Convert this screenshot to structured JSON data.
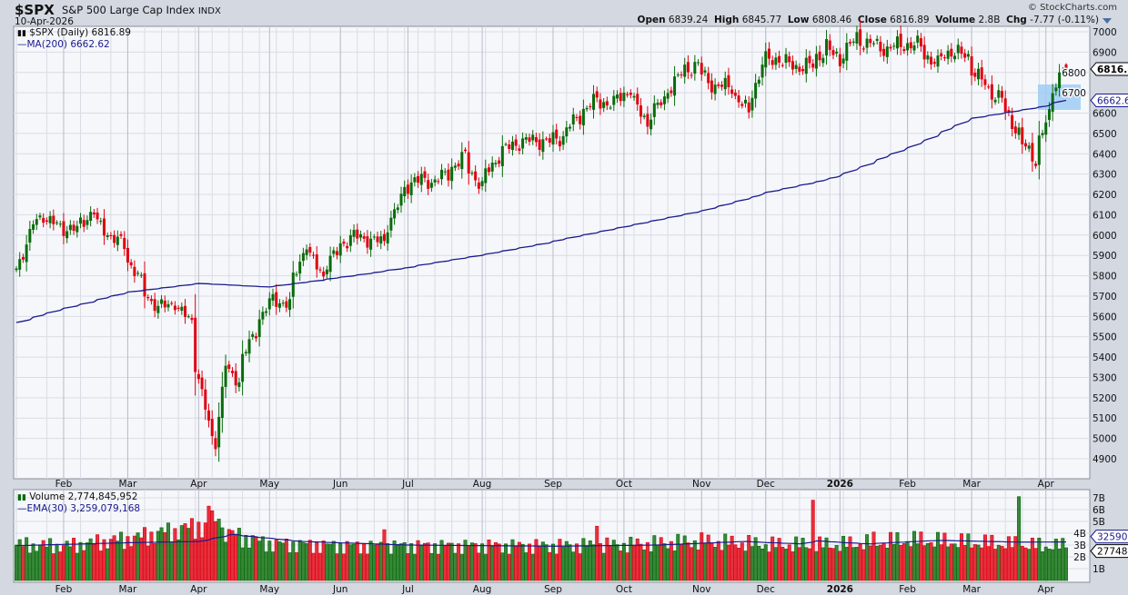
{
  "header": {
    "symbol": "$SPX",
    "name": "S&P 500 Large Cap Index",
    "exchange": "INDX",
    "date": "10-Apr-2026",
    "brand": "© StockCharts.com",
    "open_label": "Open",
    "open": "6839.24",
    "high_label": "High",
    "high": "6845.77",
    "low_label": "Low",
    "low": "6808.46",
    "close_label": "Close",
    "close": "6816.89",
    "volume_label": "Volume",
    "volume": "2.8B",
    "chg_label": "Chg",
    "chg": "-7.77 (-0.11%)"
  },
  "legend": {
    "price": "$SPX (Daily) 6816.89",
    "ma": "MA(200) 6662.62",
    "volume": "Volume 2,774,845,952",
    "ema": "EMA(30) 3,259,079,168"
  },
  "colors": {
    "up": "#0a6b0a",
    "down": "#e00010",
    "ma": "#1a1a8c",
    "grid": "#d9dce4",
    "panel": "#f5f7fb",
    "highlight": "#9fcdf5"
  },
  "chart_data": [
    {
      "type": "candlestick",
      "title": "$SPX (Daily)",
      "yscale": "linear",
      "ylim": [
        4820,
        7030
      ],
      "y_ticks": [
        4900,
        5000,
        5100,
        5200,
        5300,
        5400,
        5500,
        5600,
        5700,
        5800,
        5900,
        6000,
        6100,
        6200,
        6300,
        6400,
        6500,
        6600,
        6700,
        6800,
        6900,
        7000
      ],
      "x_ticks": [
        {
          "label": "Feb",
          "date": "2025-02-03"
        },
        {
          "label": "Mar",
          "date": "2025-03-03"
        },
        {
          "label": "Apr",
          "date": "2025-04-01"
        },
        {
          "label": "May",
          "date": "2025-05-01"
        },
        {
          "label": "Jun",
          "date": "2025-06-02"
        },
        {
          "label": "Jul",
          "date": "2025-07-01"
        },
        {
          "label": "Aug",
          "date": "2025-08-01"
        },
        {
          "label": "Sep",
          "date": "2025-09-02"
        },
        {
          "label": "Oct",
          "date": "2025-10-01"
        },
        {
          "label": "Nov",
          "date": "2025-11-03"
        },
        {
          "label": "Dec",
          "date": "2025-12-01"
        },
        {
          "label": "2026",
          "date": "2026-01-02"
        },
        {
          "label": "Feb",
          "date": "2026-02-02"
        },
        {
          "label": "Mar",
          "date": "2026-03-02"
        },
        {
          "label": "Apr",
          "date": "2026-04-01"
        }
      ],
      "weekly_close": [
        [
          "2025-01-13",
          5836
        ],
        [
          "2025-01-17",
          5997
        ],
        [
          "2025-01-24",
          6101
        ],
        [
          "2025-01-31",
          6040
        ],
        [
          "2025-02-07",
          6026
        ],
        [
          "2025-02-14",
          6114
        ],
        [
          "2025-02-21",
          6013
        ],
        [
          "2025-02-28",
          5955
        ],
        [
          "2025-03-07",
          5770
        ],
        [
          "2025-03-14",
          5639
        ],
        [
          "2025-03-21",
          5667
        ],
        [
          "2025-03-28",
          5580
        ],
        [
          "2025-04-04",
          5074
        ],
        [
          "2025-04-08",
          4982
        ],
        [
          "2025-04-11",
          5363
        ],
        [
          "2025-04-17",
          5282
        ],
        [
          "2025-04-25",
          5525
        ],
        [
          "2025-05-02",
          5686
        ],
        [
          "2025-05-09",
          5660
        ],
        [
          "2025-05-16",
          5958
        ],
        [
          "2025-05-23",
          5802
        ],
        [
          "2025-05-30",
          5912
        ],
        [
          "2025-06-06",
          6000
        ],
        [
          "2025-06-13",
          5977
        ],
        [
          "2025-06-20",
          5967
        ],
        [
          "2025-06-27",
          6173
        ],
        [
          "2025-07-03",
          6279
        ],
        [
          "2025-07-11",
          6260
        ],
        [
          "2025-07-18",
          6297
        ],
        [
          "2025-07-25",
          6389
        ],
        [
          "2025-08-01",
          6238
        ],
        [
          "2025-08-08",
          6389
        ],
        [
          "2025-08-15",
          6450
        ],
        [
          "2025-08-22",
          6467
        ],
        [
          "2025-08-29",
          6460
        ],
        [
          "2025-09-05",
          6482
        ],
        [
          "2025-09-12",
          6584
        ],
        [
          "2025-09-19",
          6664
        ],
        [
          "2025-09-26",
          6643
        ],
        [
          "2025-10-03",
          6716
        ],
        [
          "2025-10-10",
          6553
        ],
        [
          "2025-10-17",
          6664
        ],
        [
          "2025-10-24",
          6791
        ],
        [
          "2025-10-31",
          6840
        ],
        [
          "2025-11-07",
          6728
        ],
        [
          "2025-11-14",
          6734
        ],
        [
          "2025-11-21",
          6603
        ],
        [
          "2025-11-28",
          6849
        ],
        [
          "2025-12-05",
          6870
        ],
        [
          "2025-12-12",
          6827
        ],
        [
          "2025-12-19",
          6834
        ],
        [
          "2025-12-26",
          6930
        ],
        [
          "2026-01-02",
          6858
        ],
        [
          "2026-01-09",
          6966
        ],
        [
          "2026-01-16",
          6940
        ],
        [
          "2026-01-23",
          6915
        ],
        [
          "2026-01-30",
          6939
        ],
        [
          "2026-02-06",
          6932
        ],
        [
          "2026-02-13",
          6836
        ],
        [
          "2026-02-20",
          6909
        ],
        [
          "2026-02-27",
          6878
        ],
        [
          "2026-03-06",
          6740
        ],
        [
          "2026-03-13",
          6672
        ],
        [
          "2026-03-20",
          6506
        ],
        [
          "2026-03-27",
          6369
        ],
        [
          "2026-04-02",
          6580
        ],
        [
          "2026-04-09",
          6824.66
        ],
        [
          "2026-04-10",
          6816.89
        ]
      ],
      "last_bar": {
        "open": 6839.24,
        "high": 6845.77,
        "low": 6808.46,
        "close": 6816.89
      },
      "series_ma200": {
        "name": "MA(200)",
        "points": [
          [
            "2025-01-13",
            5570
          ],
          [
            "2025-02-03",
            5640
          ],
          [
            "2025-03-03",
            5720
          ],
          [
            "2025-04-01",
            5762
          ],
          [
            "2025-05-01",
            5745
          ],
          [
            "2025-06-02",
            5793
          ],
          [
            "2025-07-01",
            5840
          ],
          [
            "2025-08-01",
            5900
          ],
          [
            "2025-09-02",
            5970
          ],
          [
            "2025-10-01",
            6040
          ],
          [
            "2025-11-03",
            6120
          ],
          [
            "2025-12-01",
            6210
          ],
          [
            "2026-01-02",
            6290
          ],
          [
            "2026-02-02",
            6430
          ],
          [
            "2026-03-02",
            6575
          ],
          [
            "2026-04-01",
            6634
          ],
          [
            "2026-04-10",
            6662.62
          ]
        ]
      },
      "price_tag": "6816.89",
      "ma_tag": "6662.62"
    },
    {
      "type": "bar",
      "title": "Volume",
      "unit": "B",
      "ylim": [
        0,
        7.5
      ],
      "y_ticks": [
        {
          "v": 1,
          "label": "1B"
        },
        {
          "v": 2,
          "label": "2B"
        },
        {
          "v": 3,
          "label": "3B"
        },
        {
          "v": 4,
          "label": "4B"
        },
        {
          "v": 5,
          "label": "5B"
        },
        {
          "v": 6,
          "label": "6B"
        },
        {
          "v": 7,
          "label": "7B"
        }
      ],
      "weekly_volume": [
        [
          "2025-01-13",
          3.0
        ],
        [
          "2025-02-03",
          2.9
        ],
        [
          "2025-03-03",
          3.5
        ],
        [
          "2025-04-01",
          4.6
        ],
        [
          "2025-05-01",
          3.1
        ],
        [
          "2025-06-02",
          2.9
        ],
        [
          "2025-07-01",
          2.9
        ],
        [
          "2025-08-01",
          2.9
        ],
        [
          "2025-09-02",
          2.9
        ],
        [
          "2025-10-01",
          3.0
        ],
        [
          "2025-11-03",
          3.3
        ],
        [
          "2025-12-01",
          3.0
        ],
        [
          "2026-01-02",
          3.0
        ],
        [
          "2026-02-02",
          3.4
        ],
        [
          "2026-03-02",
          3.2
        ],
        [
          "2026-04-01",
          2.9
        ]
      ],
      "spikes": [
        [
          "2025-03-21",
          4.4
        ],
        [
          "2025-04-04",
          6.3
        ],
        [
          "2025-04-07",
          5.9
        ],
        [
          "2025-04-09",
          5.2
        ],
        [
          "2025-06-20",
          4.3
        ],
        [
          "2025-09-19",
          4.6
        ],
        [
          "2025-12-19",
          6.8
        ],
        [
          "2026-01-16",
          4.1
        ],
        [
          "2026-03-20",
          7.1
        ]
      ],
      "ema": {
        "name": "EMA(30)",
        "points": [
          [
            "2025-01-13",
            2.95
          ],
          [
            "2025-03-03",
            3.2
          ],
          [
            "2025-04-01",
            3.3
          ],
          [
            "2025-04-15",
            3.9
          ],
          [
            "2025-05-15",
            3.3
          ],
          [
            "2025-07-01",
            3.0
          ],
          [
            "2025-09-02",
            2.9
          ],
          [
            "2025-10-15",
            3.0
          ],
          [
            "2025-11-20",
            3.3
          ],
          [
            "2025-12-15",
            3.1
          ],
          [
            "2025-12-22",
            3.35
          ],
          [
            "2026-01-15",
            3.1
          ],
          [
            "2026-02-15",
            3.4
          ],
          [
            "2026-03-20",
            3.25
          ],
          [
            "2026-04-10",
            3.26
          ]
        ]
      },
      "ema_tag": "3259079",
      "volume_tag": "2774845"
    }
  ]
}
